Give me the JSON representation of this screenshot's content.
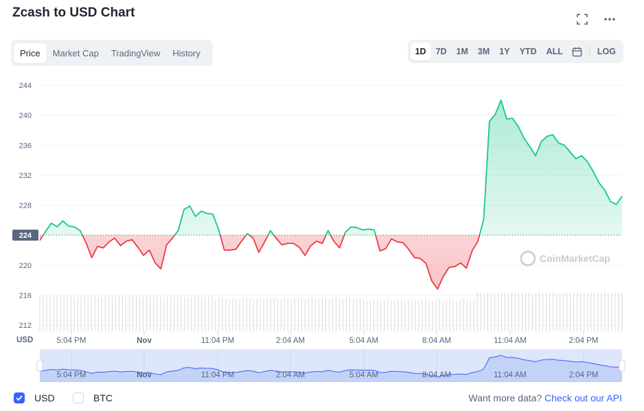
{
  "header": {
    "title": "Zcash to USD Chart",
    "fullscreen_icon": "expand-icon",
    "more_icon": "more-horizontal-icon"
  },
  "tabs": [
    {
      "label": "Price",
      "active": true
    },
    {
      "label": "Market Cap",
      "active": false
    },
    {
      "label": "TradingView",
      "active": false
    },
    {
      "label": "History",
      "active": false
    }
  ],
  "ranges": [
    {
      "label": "1D",
      "active": true
    },
    {
      "label": "7D",
      "active": false
    },
    {
      "label": "1M",
      "active": false
    },
    {
      "label": "3M",
      "active": false
    },
    {
      "label": "1Y",
      "active": false
    },
    {
      "label": "YTD",
      "active": false
    },
    {
      "label": "ALL",
      "active": false
    }
  ],
  "calendar_icon": "calendar-icon",
  "log_label": "LOG",
  "watermark": "CoinMarketCap",
  "colors": {
    "up": "#16c784",
    "down": "#ea3943",
    "accent": "#3861fb",
    "grid": "#eff2f5",
    "axis_text": "#58667e",
    "navigator_fill": "#dde6fb"
  },
  "chart_data": {
    "type": "line",
    "title": "Zcash to USD Chart",
    "xlabel": "",
    "ylabel": "USD",
    "ylim": [
      212,
      246
    ],
    "yticks": [
      212,
      216,
      220,
      224,
      228,
      232,
      236,
      240,
      244
    ],
    "xticks": [
      "5:04 PM",
      "Nov",
      "11:04 PM",
      "2:04 AM",
      "5:04 AM",
      "8:04 AM",
      "11:04 AM",
      "2:04 PM"
    ],
    "baseline": 224,
    "baseline_label": "224",
    "grid": true,
    "series": [
      {
        "values": [
          223.3,
          224.5,
          225.6,
          225.1,
          225.9,
          225.2,
          225.1,
          224.6,
          223.0,
          221.0,
          222.5,
          222.3,
          223.1,
          223.6,
          222.6,
          223.2,
          223.4,
          222.4,
          221.3,
          222.0,
          220.3,
          219.5,
          222.7,
          223.6,
          224.6,
          227.4,
          227.9,
          226.5,
          227.2,
          226.9,
          226.8,
          224.8,
          222.0,
          222.0,
          222.1,
          223.2,
          224.2,
          223.6,
          221.7,
          223.1,
          224.6,
          223.6,
          222.7,
          222.9,
          222.9,
          222.4,
          221.3,
          222.6,
          223.2,
          222.9,
          224.6,
          223.2,
          222.3,
          224.4,
          225.1,
          225.0,
          224.7,
          224.8,
          224.7,
          221.9,
          222.2,
          223.5,
          223.1,
          223.0,
          222.1,
          221.0,
          220.9,
          220.2,
          217.9,
          216.8,
          218.5,
          219.7,
          219.8,
          220.3,
          219.6,
          221.9,
          223.2,
          226.1,
          239.2,
          240.1,
          242.0,
          239.5,
          239.6,
          238.5,
          236.9,
          235.8,
          234.6,
          236.5,
          237.2,
          237.4,
          236.3,
          236.0,
          235.1,
          234.2,
          234.6,
          233.8,
          232.5,
          231.0,
          230.0,
          228.5,
          228.1,
          229.2
        ]
      }
    ],
    "volume_note": "volume bars shown below price line"
  },
  "navigator": {
    "xticks": [
      "5:04 PM",
      "Nov",
      "11:04 PM",
      "2:04 AM",
      "5:04 AM",
      "8:04 AM",
      "11:04 AM",
      "2:04 PM"
    ]
  },
  "footer": {
    "usd_label": "USD",
    "btc_label": "BTC",
    "api_text": "Want more data?",
    "api_link": "Check out our API"
  }
}
